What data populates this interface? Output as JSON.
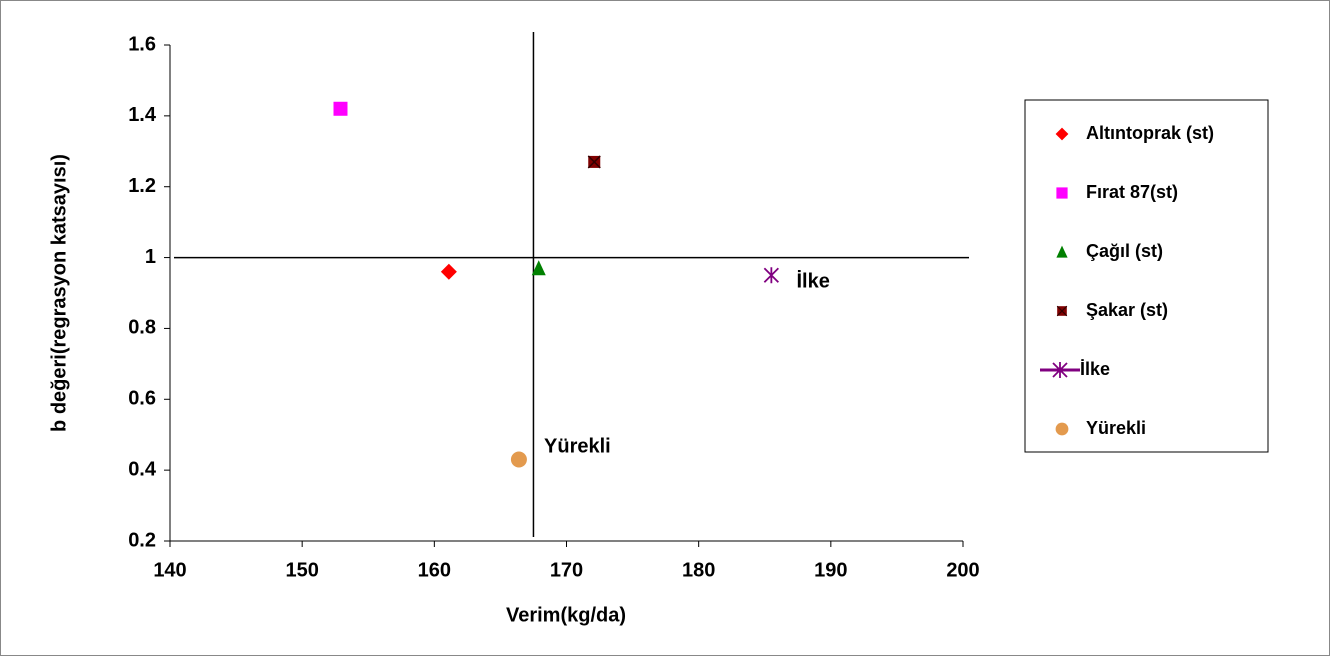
{
  "chart_data": {
    "type": "scatter",
    "x_label": "Verim(kg/da)",
    "y_label": "b değeri(regrasyon katsayısı)",
    "xlim": [
      140,
      200
    ],
    "ylim": [
      0.2,
      1.6
    ],
    "xticks": [
      140,
      150,
      160,
      170,
      180,
      190,
      200
    ],
    "yticks": [
      0.2,
      0.4,
      0.6,
      0.8,
      1,
      1.2,
      1.4,
      1.6
    ],
    "reference_lines": {
      "x": [
        167.5
      ],
      "y": [
        1
      ]
    },
    "series": [
      {
        "name": "Altıntoprak (st)",
        "color": "#ff0000",
        "marker": "diamond",
        "x": [
          161.1
        ],
        "values": [
          0.96
        ]
      },
      {
        "name": "Fırat 87(st)",
        "color": "#ff00ff",
        "marker": "square",
        "x": [
          152.9
        ],
        "values": [
          1.42
        ]
      },
      {
        "name": "Çağıl (st)",
        "color": "#008000",
        "marker": "triangle",
        "x": [
          167.9
        ],
        "values": [
          0.97
        ]
      },
      {
        "name": "Şakar (st)",
        "color": "#800000",
        "marker": "square-x",
        "x": [
          172.1
        ],
        "values": [
          1.27
        ]
      },
      {
        "name": "İlke",
        "color": "#800080",
        "marker": "asterisk",
        "x": [
          185.5
        ],
        "values": [
          0.95
        ]
      },
      {
        "name": "Yürekli",
        "color": "#e39a4e",
        "marker": "circle",
        "x": [
          166.4
        ],
        "values": [
          0.43
        ]
      }
    ],
    "annotations": [
      {
        "text": "İlke",
        "x": 187.4,
        "y": 0.93
      },
      {
        "text": "Yürekli",
        "x": 168.3,
        "y": 0.465
      }
    ],
    "legend": "right"
  }
}
